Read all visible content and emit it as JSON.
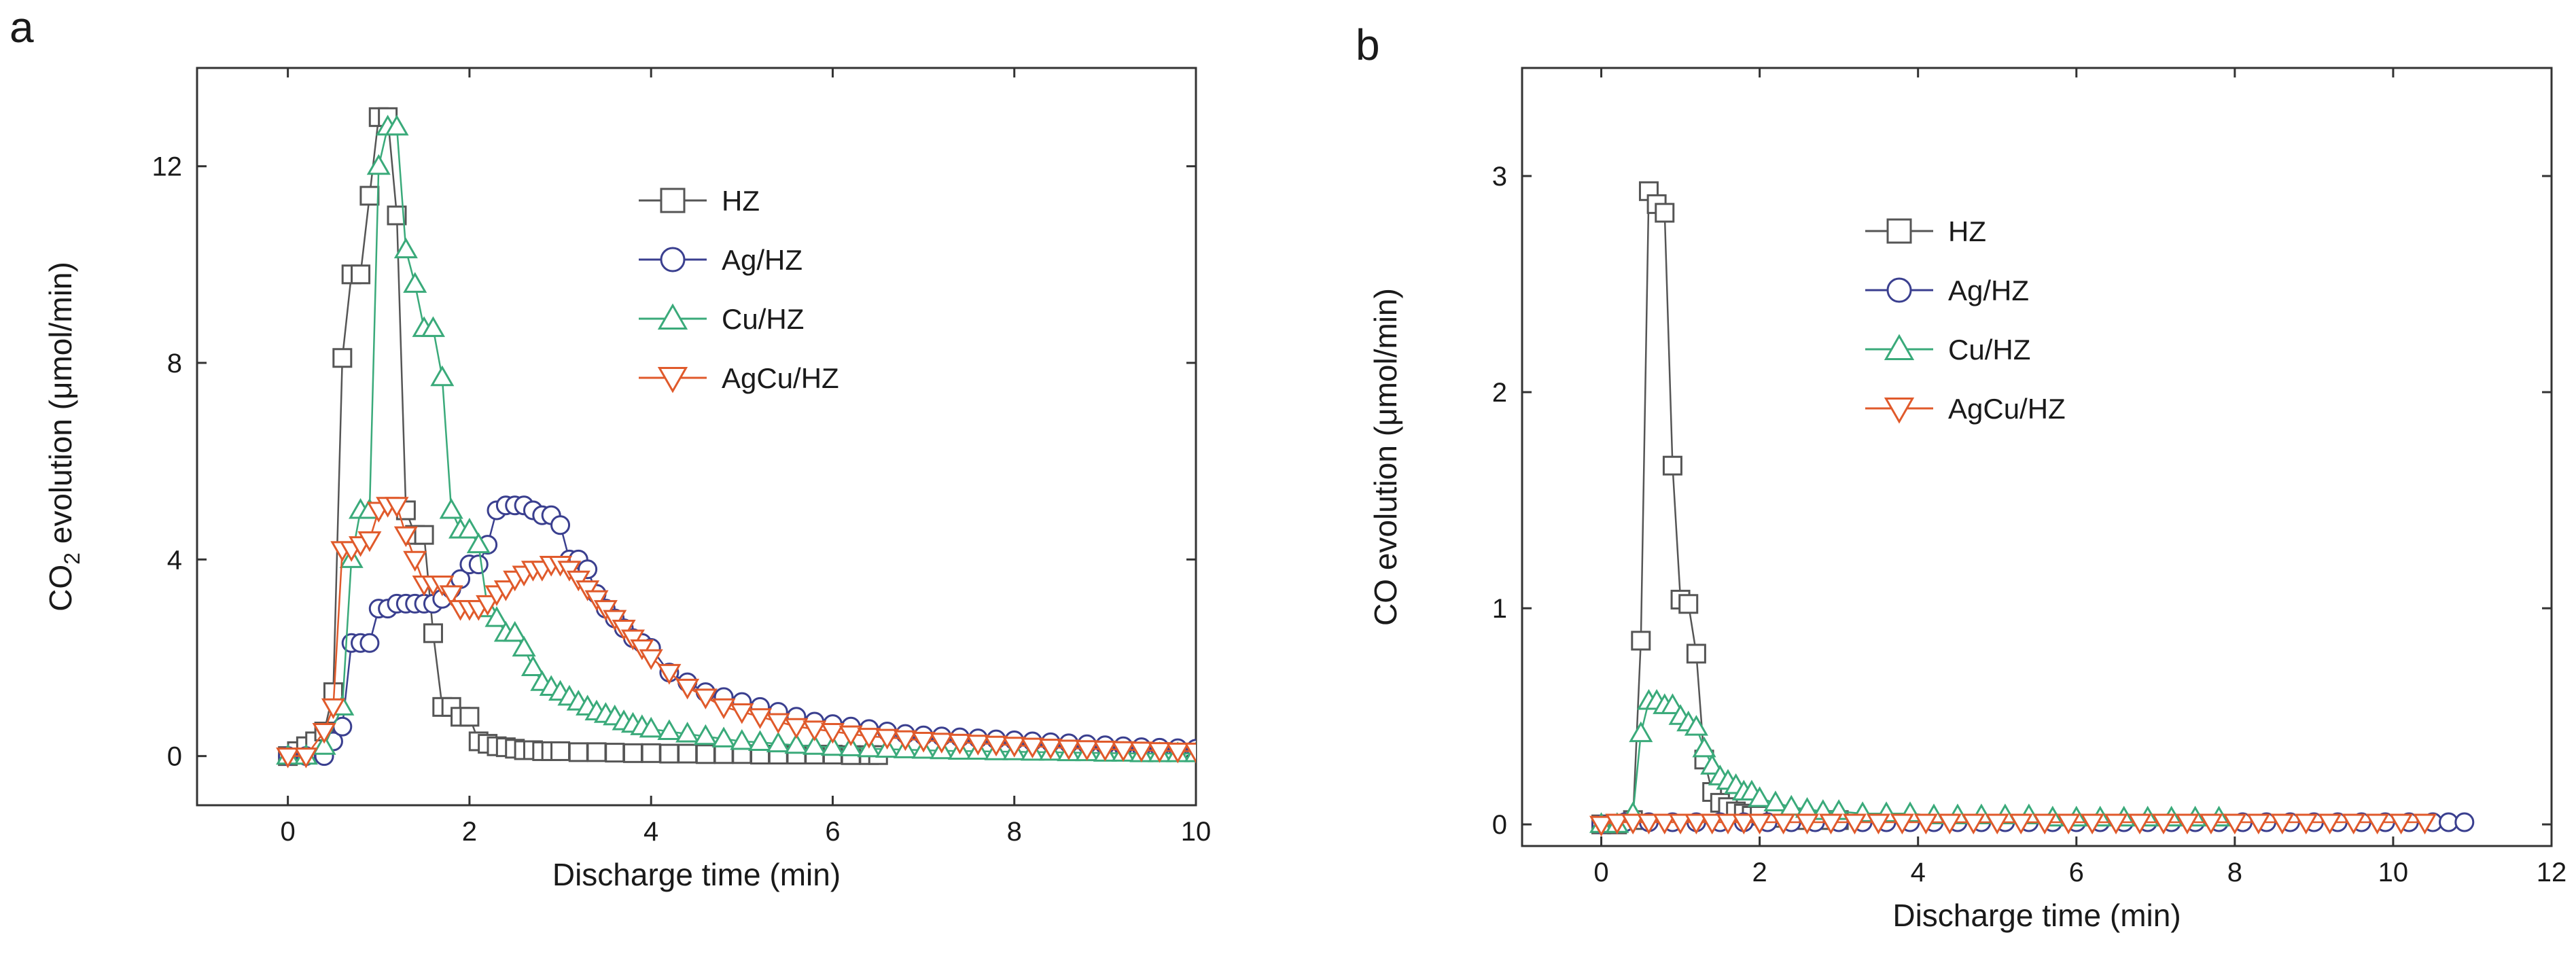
{
  "figure": {
    "panel_letters": [
      "a",
      "b"
    ]
  },
  "chart_data": [
    {
      "type": "scatter",
      "panel": "a",
      "xlabel": "Discharge time (min)",
      "ylabel_prefix": "CO",
      "ylabel_sub": "2",
      "ylabel_suffix": " evolution (μmol/min)",
      "xlim": [
        -1,
        10
      ],
      "ylim": [
        -1,
        14
      ],
      "xticks": [
        0,
        2,
        4,
        6,
        8,
        10
      ],
      "yticks": [
        0,
        4,
        8,
        12
      ],
      "grid": false,
      "legend_position": "top-right",
      "series": [
        {
          "name": "HZ",
          "marker": "square",
          "color": "#555555",
          "x": [
            0,
            0.1,
            0.2,
            0.3,
            0.4,
            0.5,
            0.6,
            0.7,
            0.8,
            0.9,
            1.0,
            1.1,
            1.2,
            1.3,
            1.4,
            1.5,
            1.6,
            1.7,
            1.8,
            1.9,
            2.0,
            2.1,
            2.2,
            2.3,
            2.4,
            2.5,
            2.6,
            2.7,
            2.8,
            2.9,
            3.0,
            3.2,
            3.4,
            3.6,
            3.8,
            4.0,
            4.2,
            4.4,
            4.6,
            4.8,
            5.0,
            5.2,
            5.4,
            5.6,
            5.8,
            6.0,
            6.2,
            6.4,
            6.5
          ],
          "y": [
            0,
            0.1,
            0.2,
            0.3,
            0.5,
            1.3,
            8.1,
            9.8,
            9.8,
            11.4,
            13.0,
            13.0,
            11.0,
            5.0,
            4.5,
            4.5,
            2.5,
            1.0,
            1.0,
            0.8,
            0.8,
            0.3,
            0.25,
            0.2,
            0.18,
            0.15,
            0.12,
            0.12,
            0.1,
            0.1,
            0.1,
            0.08,
            0.08,
            0.07,
            0.06,
            0.06,
            0.05,
            0.05,
            0.04,
            0.04,
            0.04,
            0.03,
            0.03,
            0.03,
            0.03,
            0.03,
            0.02,
            0.02,
            0.02
          ]
        },
        {
          "name": "Ag/HZ",
          "marker": "circle",
          "color": "#3a3f8f",
          "x": [
            0,
            0.2,
            0.4,
            0.5,
            0.6,
            0.7,
            0.8,
            0.9,
            1.0,
            1.1,
            1.2,
            1.3,
            1.4,
            1.5,
            1.6,
            1.7,
            1.8,
            1.9,
            2.0,
            2.1,
            2.2,
            2.3,
            2.4,
            2.5,
            2.6,
            2.7,
            2.8,
            2.9,
            3.0,
            3.1,
            3.2,
            3.3,
            3.4,
            3.5,
            3.6,
            3.7,
            3.8,
            3.9,
            4.0,
            4.2,
            4.4,
            4.6,
            4.8,
            5.0,
            5.2,
            5.4,
            5.6,
            5.8,
            6.0,
            6.2,
            6.4,
            6.6,
            6.8,
            7.0,
            7.2,
            7.4,
            7.6,
            7.8,
            8.0,
            8.2,
            8.4,
            8.6,
            8.8,
            9.0,
            9.2,
            9.4,
            9.6,
            9.8,
            10.0
          ],
          "y": [
            0,
            0,
            0,
            0.3,
            0.6,
            2.3,
            2.3,
            2.3,
            3.0,
            3.0,
            3.1,
            3.1,
            3.1,
            3.1,
            3.1,
            3.2,
            3.4,
            3.6,
            3.9,
            3.9,
            4.3,
            5.0,
            5.1,
            5.1,
            5.1,
            5.0,
            4.9,
            4.9,
            4.7,
            4.0,
            4.0,
            3.8,
            3.3,
            3.0,
            2.8,
            2.6,
            2.4,
            2.3,
            2.2,
            1.7,
            1.5,
            1.3,
            1.2,
            1.1,
            1.0,
            0.9,
            0.8,
            0.7,
            0.65,
            0.6,
            0.55,
            0.5,
            0.45,
            0.42,
            0.4,
            0.38,
            0.36,
            0.34,
            0.32,
            0.3,
            0.28,
            0.26,
            0.24,
            0.22,
            0.2,
            0.18,
            0.17,
            0.16,
            0.15
          ]
        },
        {
          "name": "Cu/HZ",
          "marker": "triangle-up",
          "color": "#3aaa7a",
          "x": [
            0,
            0.2,
            0.4,
            0.6,
            0.7,
            0.8,
            0.9,
            1.0,
            1.1,
            1.2,
            1.3,
            1.4,
            1.5,
            1.6,
            1.7,
            1.8,
            1.9,
            2.0,
            2.1,
            2.2,
            2.3,
            2.4,
            2.5,
            2.6,
            2.7,
            2.8,
            2.9,
            3.0,
            3.1,
            3.2,
            3.3,
            3.4,
            3.5,
            3.6,
            3.7,
            3.8,
            3.9,
            4.0,
            4.2,
            4.4,
            4.6,
            4.8,
            5.0,
            5.2,
            5.4,
            5.6,
            5.8,
            6.0,
            6.2,
            6.4,
            6.6,
            6.8,
            7.0,
            7.2,
            7.4,
            7.6,
            7.8,
            8.0,
            8.2,
            8.4,
            8.6,
            8.8,
            9.0,
            9.2,
            9.4,
            9.6,
            9.8,
            10.0
          ],
          "y": [
            0,
            0,
            0.2,
            1.0,
            4.0,
            5.0,
            5.0,
            12.0,
            12.8,
            12.8,
            10.3,
            9.6,
            8.7,
            8.7,
            7.7,
            5.0,
            4.6,
            4.6,
            4.3,
            3.0,
            2.8,
            2.5,
            2.5,
            2.2,
            1.8,
            1.5,
            1.4,
            1.3,
            1.2,
            1.1,
            1.0,
            0.9,
            0.85,
            0.8,
            0.7,
            0.65,
            0.6,
            0.55,
            0.5,
            0.45,
            0.4,
            0.35,
            0.3,
            0.28,
            0.25,
            0.22,
            0.2,
            0.18,
            0.17,
            0.15,
            0.14,
            0.13,
            0.12,
            0.11,
            0.1,
            0.1,
            0.09,
            0.09,
            0.08,
            0.08,
            0.07,
            0.07,
            0.06,
            0.06,
            0.05,
            0.05,
            0.05,
            0.05
          ]
        },
        {
          "name": "AgCu/HZ",
          "marker": "triangle-down",
          "color": "#e05a2b",
          "x": [
            0,
            0.2,
            0.4,
            0.5,
            0.6,
            0.7,
            0.8,
            0.9,
            1.0,
            1.1,
            1.2,
            1.3,
            1.4,
            1.5,
            1.6,
            1.7,
            1.8,
            1.9,
            2.0,
            2.1,
            2.2,
            2.3,
            2.4,
            2.5,
            2.6,
            2.7,
            2.8,
            2.9,
            3.0,
            3.1,
            3.2,
            3.3,
            3.4,
            3.5,
            3.6,
            3.7,
            3.8,
            3.9,
            4.0,
            4.2,
            4.4,
            4.6,
            4.8,
            5.0,
            5.2,
            5.4,
            5.6,
            5.8,
            6.0,
            6.2,
            6.4,
            6.6,
            6.8,
            7.0,
            7.2,
            7.4,
            7.6,
            7.8,
            8.0,
            8.2,
            8.4,
            8.6,
            8.8,
            9.0,
            9.2,
            9.4,
            9.6,
            9.8,
            10.0
          ],
          "y": [
            0,
            0,
            0.5,
            1.0,
            4.2,
            4.2,
            4.3,
            4.4,
            5.0,
            5.1,
            5.1,
            4.5,
            4.0,
            3.5,
            3.5,
            3.5,
            3.3,
            3.0,
            3.0,
            3.0,
            3.1,
            3.3,
            3.4,
            3.6,
            3.7,
            3.8,
            3.8,
            3.9,
            3.9,
            3.8,
            3.6,
            3.4,
            3.2,
            3.0,
            2.8,
            2.6,
            2.4,
            2.2,
            2.0,
            1.7,
            1.4,
            1.2,
            1.0,
            0.9,
            0.8,
            0.7,
            0.6,
            0.55,
            0.5,
            0.45,
            0.4,
            0.38,
            0.35,
            0.32,
            0.3,
            0.28,
            0.26,
            0.24,
            0.22,
            0.2,
            0.18,
            0.16,
            0.15,
            0.14,
            0.13,
            0.12,
            0.11,
            0.1,
            0.1
          ]
        }
      ]
    },
    {
      "type": "scatter",
      "panel": "b",
      "xlabel": "Discharge time (min)",
      "ylabel_prefix": "CO",
      "ylabel_sub": "",
      "ylabel_suffix": " evolution (μmol/min)",
      "xlim": [
        -1,
        12
      ],
      "ylim": [
        -0.1,
        3.5
      ],
      "xticks": [
        0,
        2,
        4,
        6,
        8,
        10,
        12
      ],
      "yticks": [
        0,
        1,
        2,
        3
      ],
      "grid": false,
      "legend_position": "top-right",
      "series": [
        {
          "name": "HZ",
          "marker": "square",
          "color": "#555555",
          "x": [
            0,
            0.2,
            0.4,
            0.5,
            0.6,
            0.7,
            0.8,
            0.9,
            1.0,
            1.1,
            1.2,
            1.3,
            1.4,
            1.5,
            1.6,
            1.7,
            1.8,
            1.9,
            2.0,
            2.2,
            2.4,
            2.6,
            2.8,
            3.0
          ],
          "y": [
            0,
            0,
            0.02,
            0.85,
            2.93,
            2.87,
            2.83,
            1.66,
            1.04,
            1.02,
            0.79,
            0.3,
            0.15,
            0.1,
            0.08,
            0.06,
            0.05,
            0.04,
            0.04,
            0.03,
            0.03,
            0.02,
            0.02,
            0.02
          ]
        },
        {
          "name": "Ag/HZ",
          "marker": "circle",
          "color": "#3a3f8f",
          "x": [
            0,
            0.3,
            0.6,
            0.9,
            1.2,
            1.5,
            1.8,
            2.1,
            2.4,
            2.7,
            3.0,
            3.3,
            3.6,
            3.9,
            4.2,
            4.5,
            4.8,
            5.1,
            5.4,
            5.7,
            6.0,
            6.3,
            6.6,
            6.9,
            7.2,
            7.5,
            7.8,
            8.1,
            8.4,
            8.7,
            9.0,
            9.3,
            9.6,
            9.9,
            10.2,
            10.5,
            10.7,
            10.9
          ],
          "y": [
            0,
            0.01,
            0.01,
            0.01,
            0.01,
            0.01,
            0.01,
            0.01,
            0.01,
            0.01,
            0.01,
            0.01,
            0.01,
            0.01,
            0.01,
            0.01,
            0.01,
            0.01,
            0.01,
            0.01,
            0.01,
            0.01,
            0.01,
            0.01,
            0.01,
            0.01,
            0.01,
            0.01,
            0.01,
            0.01,
            0.01,
            0.01,
            0.01,
            0.01,
            0.01,
            0.01,
            0.01,
            0.01
          ]
        },
        {
          "name": "Cu/HZ",
          "marker": "triangle-up",
          "color": "#3aaa7a",
          "x": [
            0,
            0.2,
            0.4,
            0.5,
            0.6,
            0.7,
            0.8,
            0.9,
            1.0,
            1.1,
            1.2,
            1.3,
            1.4,
            1.5,
            1.6,
            1.7,
            1.8,
            1.9,
            2.0,
            2.2,
            2.4,
            2.6,
            2.8,
            3.0,
            3.3,
            3.6,
            3.9,
            4.2,
            4.5,
            4.8,
            5.1,
            5.4,
            5.7,
            6.0,
            6.3,
            6.6,
            6.9,
            7.2,
            7.5,
            7.8
          ],
          "y": [
            0,
            0,
            0.05,
            0.42,
            0.57,
            0.57,
            0.55,
            0.55,
            0.5,
            0.47,
            0.45,
            0.35,
            0.27,
            0.22,
            0.2,
            0.18,
            0.15,
            0.15,
            0.12,
            0.1,
            0.08,
            0.07,
            0.06,
            0.06,
            0.05,
            0.05,
            0.05,
            0.04,
            0.04,
            0.04,
            0.04,
            0.04,
            0.03,
            0.03,
            0.03,
            0.03,
            0.03,
            0.03,
            0.03,
            0.03
          ]
        },
        {
          "name": "AgCu/HZ",
          "marker": "triangle-down",
          "color": "#e05a2b",
          "x": [
            0,
            0.2,
            0.4,
            0.6,
            0.8,
            1.0,
            1.2,
            1.4,
            1.6,
            1.8,
            2.0,
            2.3,
            2.6,
            2.9,
            3.2,
            3.5,
            3.8,
            4.1,
            4.4,
            4.7,
            5.0,
            5.3,
            5.6,
            5.9,
            6.2,
            6.5,
            6.8,
            7.1,
            7.4,
            7.7,
            8.0,
            8.3,
            8.6,
            8.9,
            9.2,
            9.5,
            9.8,
            10.1,
            10.4
          ],
          "y": [
            0,
            0.01,
            0.01,
            0.01,
            0.01,
            0.01,
            0.01,
            0.01,
            0.01,
            0.01,
            0.01,
            0.01,
            0.01,
            0.01,
            0.01,
            0.01,
            0.01,
            0.01,
            0.01,
            0.01,
            0.01,
            0.01,
            0.01,
            0.01,
            0.01,
            0.01,
            0.01,
            0.01,
            0.01,
            0.01,
            0.01,
            0.01,
            0.01,
            0.01,
            0.01,
            0.01,
            0.01,
            0.01,
            0.01
          ]
        }
      ]
    }
  ]
}
